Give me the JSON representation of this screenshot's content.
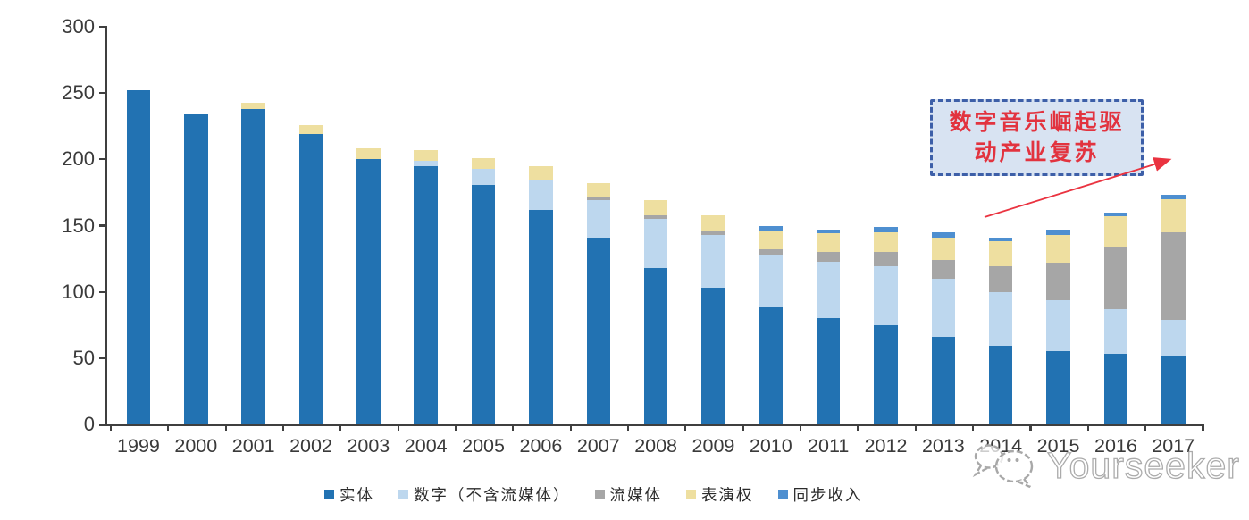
{
  "annotation": {
    "line1": "数字音乐崛起驱",
    "line2": "动产业复苏",
    "text_color": "#e2333f",
    "box_fill": "#d8e3f2",
    "box_border_color": "#3d5fa8",
    "arrow_color": "#ea3340"
  },
  "watermark": {
    "text": "Yourseeker",
    "icon": "chat-bubbles-icon"
  },
  "chart_data": {
    "type": "bar",
    "stacked": true,
    "title": "",
    "xlabel": "",
    "ylabel": "",
    "grid": false,
    "legend_position": "bottom",
    "ylim": [
      0,
      300
    ],
    "yticks": [
      0,
      50,
      100,
      150,
      200,
      250,
      300
    ],
    "categories": [
      "1999",
      "2000",
      "2001",
      "2002",
      "2003",
      "2004",
      "2005",
      "2006",
      "2007",
      "2008",
      "2009",
      "2010",
      "2011",
      "2012",
      "2013",
      "2014",
      "2015",
      "2016",
      "2017"
    ],
    "series": [
      {
        "name": "实体",
        "color": "#2272b2",
        "values": [
          252,
          234,
          238,
          219,
          200,
          195,
          181,
          162,
          141,
          118,
          103,
          88,
          80,
          75,
          66,
          59,
          55,
          53,
          52
        ]
      },
      {
        "name": "数字（不含流媒体）",
        "color": "#bdd7ee",
        "values": [
          0,
          0,
          0,
          0,
          0,
          4,
          12,
          22,
          28,
          37,
          40,
          40,
          43,
          44,
          44,
          41,
          39,
          34,
          27
        ]
      },
      {
        "name": "流媒体",
        "color": "#a6a6a6",
        "values": [
          0,
          0,
          0,
          0,
          0,
          0,
          0,
          1,
          2,
          3,
          3,
          4,
          7,
          11,
          14,
          19,
          28,
          47,
          66
        ]
      },
      {
        "name": "表演权",
        "color": "#eedfa0",
        "values": [
          0,
          0,
          5,
          7,
          8,
          8,
          8,
          10,
          11,
          11,
          12,
          14,
          14,
          15,
          17,
          19,
          21,
          23,
          25
        ]
      },
      {
        "name": "同步收入",
        "color": "#4e8fd0",
        "values": [
          0,
          0,
          0,
          0,
          0,
          0,
          0,
          0,
          0,
          0,
          0,
          4,
          3,
          4,
          4,
          3,
          4,
          3,
          3
        ]
      }
    ],
    "totals": [
      252,
      234,
      243,
      226,
      208,
      207,
      201,
      195,
      182,
      169,
      158,
      150,
      147,
      149,
      145,
      141,
      147,
      160,
      173
    ]
  }
}
